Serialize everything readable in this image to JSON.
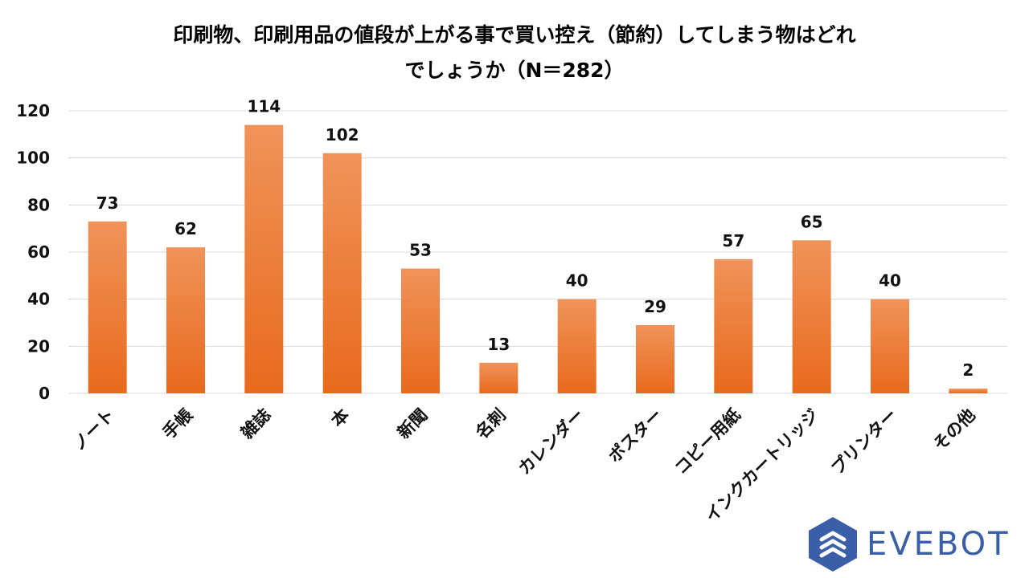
{
  "chart_data": {
    "type": "bar",
    "title_lines": [
      "印刷物、印刷用品の値段が上がる事で買い控え（節約）してしまう物はどれ",
      "でしょうか（N＝282）"
    ],
    "categories": [
      "ノート",
      "手帳",
      "雑誌",
      "本",
      "新聞",
      "名刺",
      "カレンダー",
      "ポスター",
      "コピー用紙",
      "インクカートリッジ",
      "プリンター",
      "その他"
    ],
    "values": [
      73,
      62,
      114,
      102,
      53,
      13,
      40,
      29,
      57,
      65,
      40,
      2
    ],
    "ylim": [
      0,
      120
    ],
    "yticks": [
      0,
      20,
      40,
      60,
      80,
      100,
      120
    ],
    "grid": true,
    "legend": "none",
    "bar_color_top": "#f0935a",
    "bar_color_bottom": "#e86a1c",
    "grid_color": "#d9d9d9"
  },
  "logo": {
    "text": "EVEBOT",
    "color": "#3a5ea8",
    "icon": "evebot-hexagon-logo-icon"
  }
}
